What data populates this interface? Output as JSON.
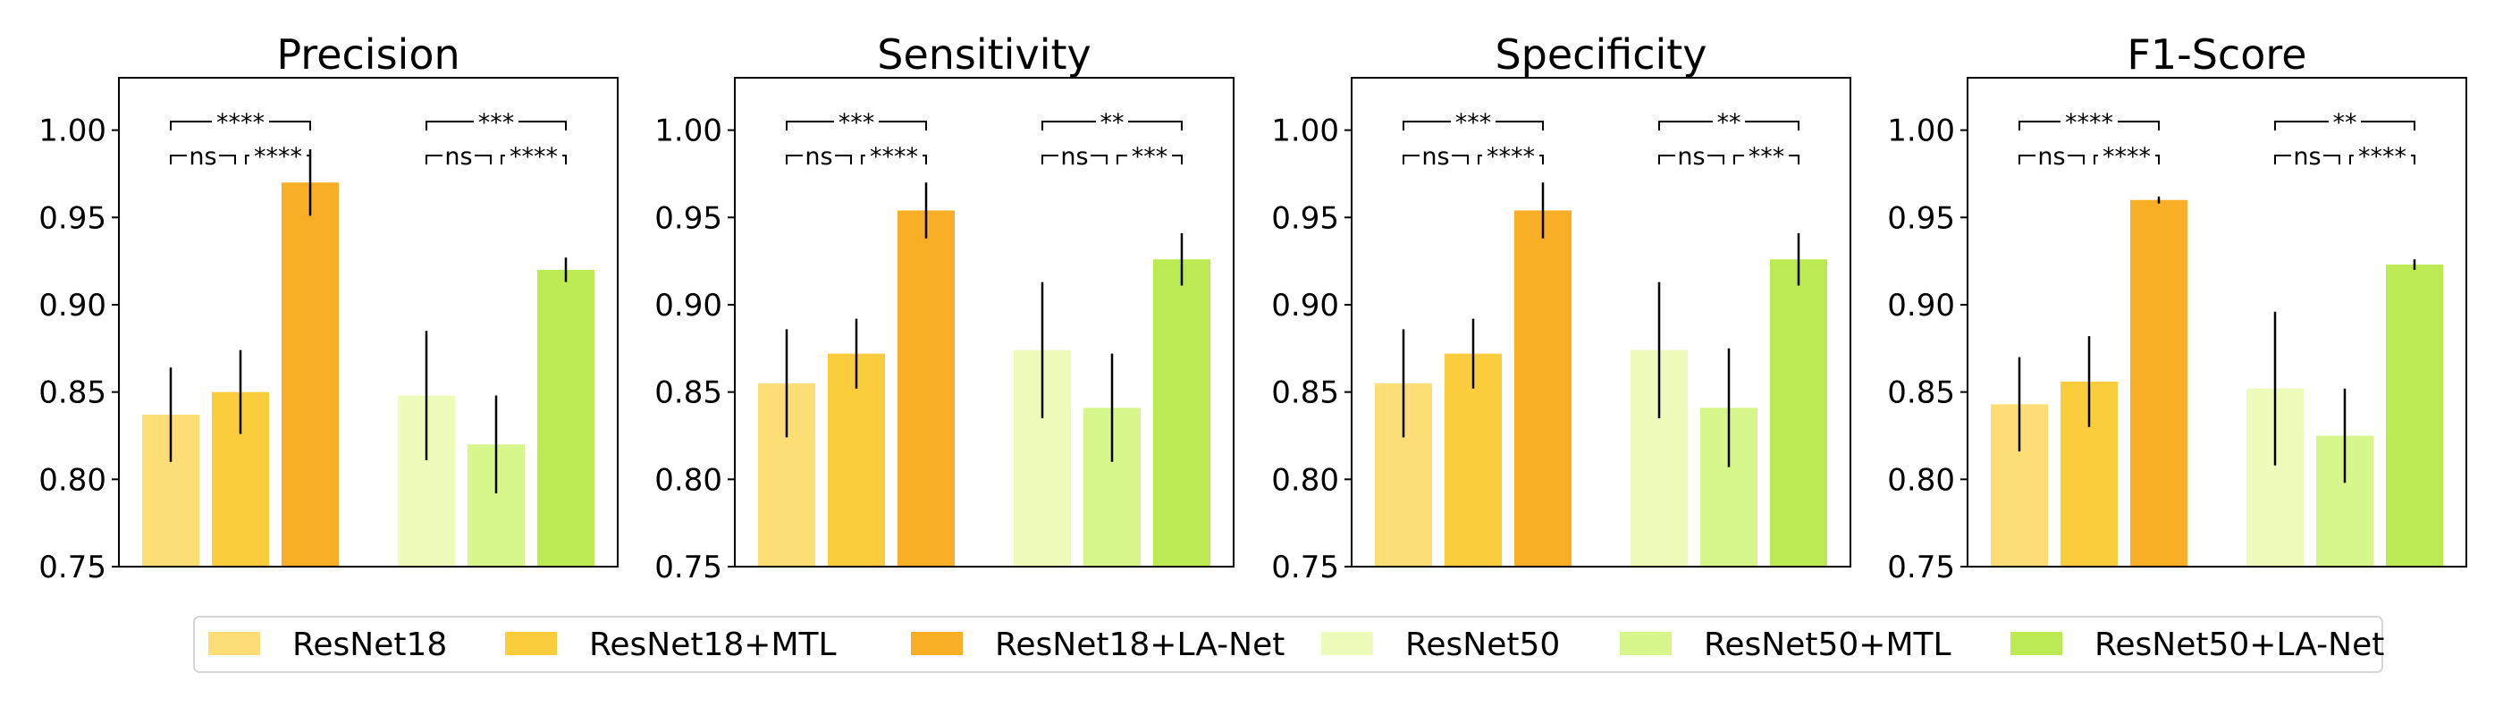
{
  "chart_data": {
    "type": "bar",
    "ylim": [
      0.75,
      1.03
    ],
    "yticks": [
      "0.75",
      "0.80",
      "0.85",
      "0.90",
      "0.95",
      "1.00"
    ],
    "series": [
      {
        "name": "ResNet18",
        "color": "#FDDD76"
      },
      {
        "name": "ResNet18+MTL",
        "color": "#FBCD3D"
      },
      {
        "name": "ResNet18+LA-Net",
        "color": "#F8AE25"
      },
      {
        "name": "ResNet50",
        "color": "#EEFCBB"
      },
      {
        "name": "ResNet50+MTL",
        "color": "#D7F78C"
      },
      {
        "name": "ResNet50+LA-Net",
        "color": "#BCEA52"
      }
    ],
    "panels": [
      {
        "title": "Precision",
        "values": [
          0.837,
          0.85,
          0.97,
          0.848,
          0.82,
          0.92
        ],
        "errors": [
          0.027,
          0.024,
          0.019,
          0.037,
          0.028,
          0.007
        ],
        "significance": [
          {
            "outer": "****",
            "left": "ns",
            "right": "****"
          },
          {
            "outer": "***",
            "left": "ns",
            "right": "****"
          }
        ]
      },
      {
        "title": "Sensitivity",
        "values": [
          0.855,
          0.872,
          0.954,
          0.874,
          0.841,
          0.926
        ],
        "errors": [
          0.031,
          0.02,
          0.016,
          0.039,
          0.031,
          0.015
        ],
        "significance": [
          {
            "outer": "***",
            "left": "ns",
            "right": "****"
          },
          {
            "outer": "**",
            "left": "ns",
            "right": "***"
          }
        ]
      },
      {
        "title": "Specificity",
        "values": [
          0.855,
          0.872,
          0.954,
          0.874,
          0.841,
          0.926
        ],
        "errors": [
          0.031,
          0.02,
          0.016,
          0.039,
          0.034,
          0.015
        ],
        "significance": [
          {
            "outer": "***",
            "left": "ns",
            "right": "****"
          },
          {
            "outer": "**",
            "left": "ns",
            "right": "***"
          }
        ]
      },
      {
        "title": "F1-Score",
        "values": [
          0.843,
          0.856,
          0.96,
          0.852,
          0.825,
          0.923
        ],
        "errors": [
          0.027,
          0.026,
          0.002,
          0.044,
          0.027,
          0.003
        ],
        "significance": [
          {
            "outer": "****",
            "left": "ns",
            "right": "****"
          },
          {
            "outer": "**",
            "left": "ns",
            "right": "****"
          }
        ]
      }
    ]
  }
}
